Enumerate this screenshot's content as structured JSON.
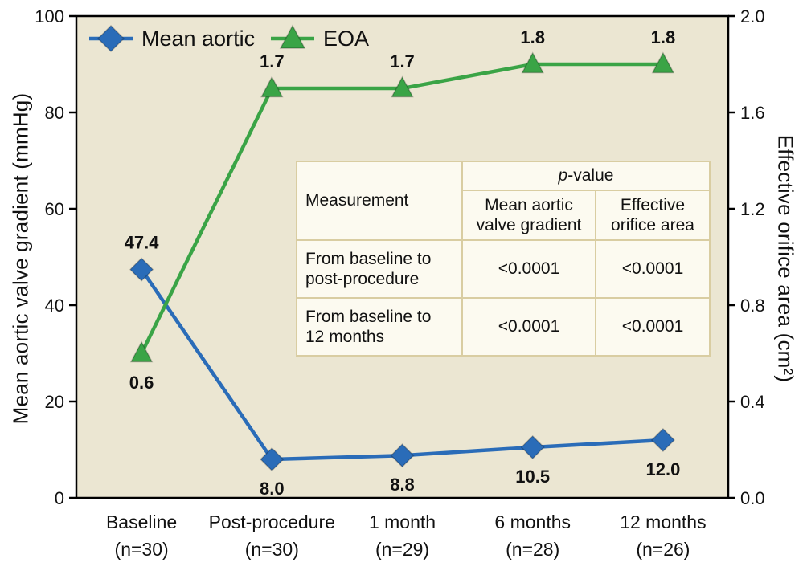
{
  "chart_data": {
    "type": "line",
    "categories": [
      {
        "label": "Baseline",
        "n": "(n=30)"
      },
      {
        "label": "Post-procedure",
        "n": "(n=30)"
      },
      {
        "label": "1 month",
        "n": "(n=29)"
      },
      {
        "label": "6 months",
        "n": "(n=28)"
      },
      {
        "label": "12 months",
        "n": "(n=26)"
      }
    ],
    "series": [
      {
        "name": "Mean aortic",
        "axis": "left",
        "color": "#2a6cb8",
        "marker": "diamond",
        "values": [
          47.4,
          8.0,
          8.8,
          10.5,
          12.0
        ],
        "labels": [
          "47.4",
          "8.0",
          "8.8",
          "10.5",
          "12.0"
        ],
        "label_positions": [
          "above",
          "below",
          "below",
          "below",
          "below"
        ]
      },
      {
        "name": "EOA",
        "axis": "right",
        "color": "#3aa446",
        "marker": "triangle",
        "values": [
          0.6,
          1.7,
          1.7,
          1.8,
          1.8
        ],
        "labels": [
          "0.6",
          "1.7",
          "1.7",
          "1.8",
          "1.8"
        ],
        "label_positions": [
          "below",
          "above",
          "above",
          "above",
          "above"
        ]
      }
    ],
    "axes": {
      "left": {
        "title": "Mean aortic valve gradient (mmHg)",
        "min": 0,
        "max": 100,
        "ticks": [
          "0",
          "20",
          "40",
          "60",
          "80",
          "100"
        ]
      },
      "right": {
        "title": "Effective orifice area (cm²)",
        "min": 0,
        "max": 2,
        "ticks": [
          "0.0",
          "0.4",
          "0.8",
          "1.2",
          "1.6",
          "2.0"
        ]
      }
    },
    "legend": [
      "Mean aortic",
      "EOA"
    ],
    "plot_background": "#ebe6d2",
    "grid": false,
    "legend_position": "top-left-inside"
  },
  "table": {
    "header_measurement": "Measurement",
    "p_italic": "p",
    "p_rest": "-value",
    "header_col1": "Mean aortic valve gradient",
    "header_col2": "Effective orifice area",
    "rows": [
      {
        "label": "From baseline to post-procedure",
        "v1": "<0.0001",
        "v2": "<0.0001"
      },
      {
        "label": "From baseline to 12 months",
        "v1": "<0.0001",
        "v2": "<0.0001"
      }
    ]
  }
}
